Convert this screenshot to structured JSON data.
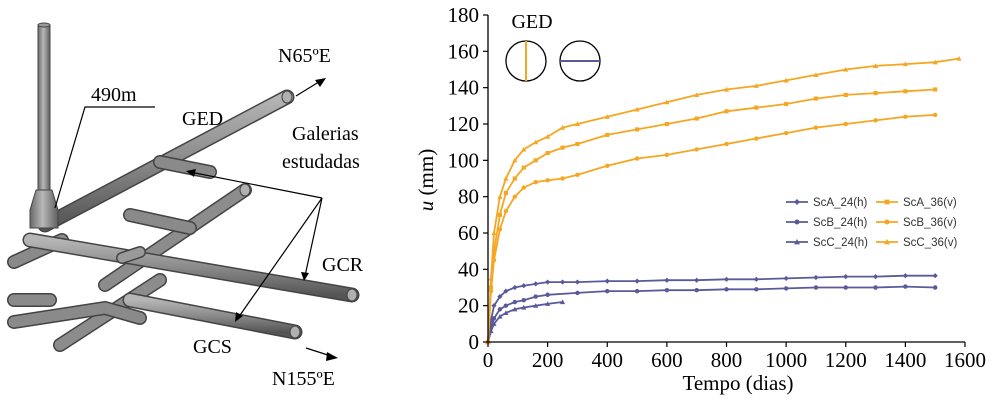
{
  "diagram": {
    "labels": {
      "north_east": "N65ºE",
      "depth": "490m",
      "ged": "GED",
      "studied": "Galerias\nestudadas",
      "gcr": "GCR",
      "gcs": "GCS",
      "south_east": "N155ºE"
    },
    "colors": {
      "pipe": "#8a8a8a",
      "pipe_dark": "#5a5a5a",
      "pipe_light": "#b8b8b8"
    }
  },
  "chart_data": {
    "type": "line",
    "title": "GED",
    "xlabel": "Tempo (dias)",
    "ylabel_italic": "u",
    "ylabel_rest": " (mm)",
    "xlim": [
      0,
      1600
    ],
    "ylim": [
      0,
      180
    ],
    "xticks": [
      "0",
      "200",
      "400",
      "600",
      "800",
      "1000",
      "1200",
      "1400",
      "1600"
    ],
    "yticks": [
      "0",
      "20",
      "40",
      "60",
      "80",
      "100",
      "120",
      "140",
      "160",
      "180"
    ],
    "legend_position": "right",
    "colors": {
      "horizontal": "#5a5a9a",
      "vertical": "#f5a623"
    },
    "series": [
      {
        "name": "ScA_24(h)",
        "color": "#5a5a9a",
        "marker": "diamond",
        "x": [
          0,
          10,
          20,
          40,
          60,
          90,
          120,
          160,
          200,
          250,
          300,
          400,
          500,
          600,
          700,
          800,
          900,
          1000,
          1100,
          1200,
          1300,
          1400,
          1500
        ],
        "y": [
          0,
          12,
          20,
          25,
          28,
          30,
          31,
          32,
          33,
          33,
          33,
          33.5,
          33.5,
          34,
          34,
          34.5,
          34.5,
          35,
          35.5,
          36,
          36,
          36.5,
          36.5
        ]
      },
      {
        "name": "ScB_24(h)",
        "color": "#5a5a9a",
        "marker": "circle",
        "x": [
          0,
          10,
          20,
          40,
          60,
          90,
          120,
          160,
          200,
          300,
          400,
          500,
          600,
          700,
          800,
          900,
          1000,
          1100,
          1200,
          1300,
          1400,
          1500
        ],
        "y": [
          0,
          8,
          13,
          18,
          20,
          22,
          23,
          25,
          26,
          27,
          28,
          28,
          28.5,
          28.5,
          29,
          29,
          29.5,
          30,
          30,
          30,
          30.5,
          30
        ]
      },
      {
        "name": "ScC_24(h)",
        "color": "#5a5a9a",
        "marker": "triangle",
        "x": [
          0,
          10,
          20,
          40,
          60,
          90,
          120,
          160,
          200,
          250
        ],
        "y": [
          0,
          6,
          10,
          14,
          16,
          18,
          19,
          20,
          21,
          22
        ]
      },
      {
        "name": "ScA_36(v)",
        "color": "#f5a623",
        "marker": "square",
        "x": [
          0,
          10,
          20,
          40,
          60,
          90,
          120,
          160,
          200,
          250,
          300,
          400,
          500,
          600,
          700,
          800,
          900,
          1000,
          1100,
          1200,
          1300,
          1400,
          1500
        ],
        "y": [
          0,
          30,
          50,
          70,
          82,
          90,
          96,
          100,
          104,
          107,
          109,
          114,
          117,
          120,
          123,
          127,
          129,
          131,
          134,
          136,
          137,
          138,
          139
        ]
      },
      {
        "name": "ScB_36(v)",
        "color": "#f5a623",
        "marker": "circle",
        "x": [
          0,
          10,
          20,
          40,
          60,
          90,
          120,
          160,
          200,
          250,
          300,
          400,
          500,
          600,
          700,
          800,
          900,
          1000,
          1100,
          1200,
          1300,
          1400,
          1500
        ],
        "y": [
          0,
          28,
          45,
          62,
          72,
          80,
          85,
          88,
          89,
          90,
          92,
          97,
          101,
          103,
          106,
          109,
          112,
          115,
          118,
          120,
          122,
          124,
          125
        ]
      },
      {
        "name": "ScC_36(v)",
        "color": "#f5a623",
        "marker": "triangle",
        "x": [
          0,
          10,
          20,
          40,
          60,
          90,
          120,
          160,
          200,
          250,
          300,
          400,
          500,
          600,
          700,
          800,
          900,
          1000,
          1100,
          1200,
          1300,
          1400,
          1500,
          1580
        ],
        "y": [
          0,
          35,
          60,
          80,
          90,
          100,
          106,
          110,
          113,
          118,
          120,
          124,
          128,
          132,
          136,
          139,
          141,
          144,
          147,
          150,
          152,
          153,
          154,
          156
        ]
      }
    ]
  }
}
